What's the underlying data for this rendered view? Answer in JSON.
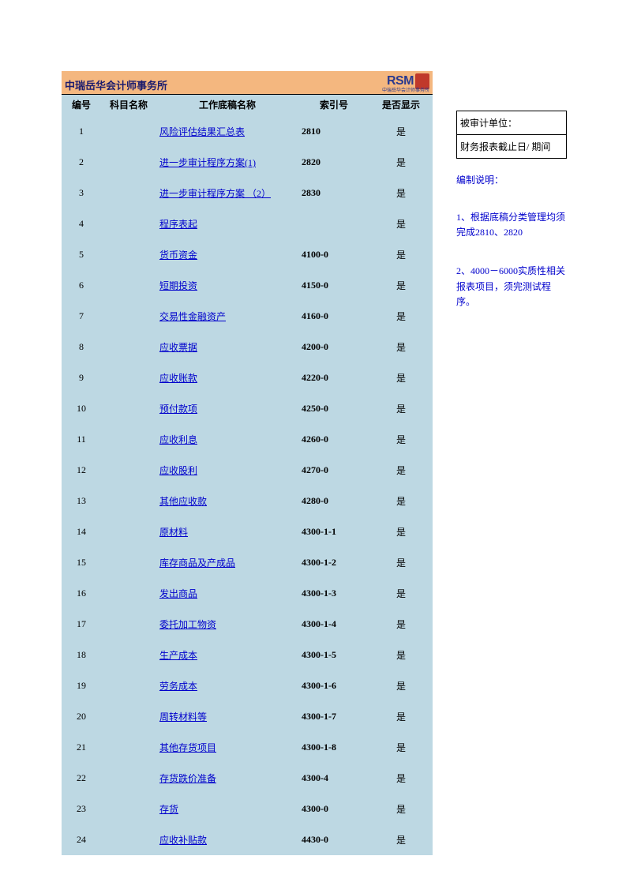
{
  "header": {
    "org_name": "中瑞岳华会计师事务所",
    "logo_text": "RSM",
    "logo_subtext": "中瑞岳华会计师事务所",
    "bar_color": "#f4b77f",
    "title_color": "#1c1c6e",
    "logo_color": "#2a3a8f",
    "seal_color": "#c0392b"
  },
  "table": {
    "background_color": "#bdd8e3",
    "link_color": "#0000cc",
    "columns": {
      "num": "编号",
      "subject": "科目名称",
      "doc_name": "工作底稿名称",
      "index": "索引号",
      "show": "是否显示"
    },
    "rows": [
      {
        "num": "1",
        "subject": "",
        "doc": "风险评估结果汇总表",
        "idx": "2810",
        "show": "是"
      },
      {
        "num": "2",
        "subject": "",
        "doc": "进一步审计程序方案(1)",
        "idx": "2820",
        "show": "是"
      },
      {
        "num": "3",
        "subject": "",
        "doc": "进一步审计程序方案 （2）",
        "idx": "2830",
        "show": "是"
      },
      {
        "num": "4",
        "subject": "",
        "doc": "程序表起",
        "idx": "",
        "show": "是"
      },
      {
        "num": "5",
        "subject": "",
        "doc": "货币资金",
        "idx": "4100-0",
        "show": "是"
      },
      {
        "num": "6",
        "subject": "",
        "doc": "短期投资",
        "idx": "4150-0",
        "show": "是"
      },
      {
        "num": "7",
        "subject": "",
        "doc": "交易性金融资产",
        "idx": "4160-0",
        "show": "是"
      },
      {
        "num": "8",
        "subject": "",
        "doc": "应收票据",
        "idx": "4200-0",
        "show": "是"
      },
      {
        "num": "9",
        "subject": "",
        "doc": "应收账款",
        "idx": "4220-0",
        "show": "是"
      },
      {
        "num": "10",
        "subject": "",
        "doc": "预付款项",
        "idx": "4250-0",
        "show": "是"
      },
      {
        "num": "11",
        "subject": "",
        "doc": "应收利息",
        "idx": "4260-0",
        "show": "是"
      },
      {
        "num": "12",
        "subject": "",
        "doc": "应收股利",
        "idx": "4270-0",
        "show": "是"
      },
      {
        "num": "13",
        "subject": "",
        "doc": "其他应收款",
        "idx": "4280-0",
        "show": "是"
      },
      {
        "num": "14",
        "subject": "",
        "doc": "原材料",
        "idx": "4300-1-1",
        "show": "是"
      },
      {
        "num": "15",
        "subject": "",
        "doc": "库存商品及产成品",
        "idx": "4300-1-2",
        "show": "是"
      },
      {
        "num": "16",
        "subject": "",
        "doc": "发出商品",
        "idx": "4300-1-3",
        "show": "是"
      },
      {
        "num": "17",
        "subject": "",
        "doc": "委托加工物资",
        "idx": "4300-1-4",
        "show": "是"
      },
      {
        "num": "18",
        "subject": "",
        "doc": "生产成本",
        "idx": "4300-1-5",
        "show": "是"
      },
      {
        "num": "19",
        "subject": "",
        "doc": "劳务成本",
        "idx": "4300-1-6",
        "show": "是"
      },
      {
        "num": "20",
        "subject": "",
        "doc": "周转材料等",
        "idx": "4300-1-7",
        "show": "是"
      },
      {
        "num": "21",
        "subject": "",
        "doc": "其他存货项目",
        "idx": "4300-1-8",
        "show": "是"
      },
      {
        "num": "22",
        "subject": "",
        "doc": "存货跌价准备",
        "idx": "4300-4",
        "show": "是"
      },
      {
        "num": "23",
        "subject": "",
        "doc": "存货",
        "idx": "4300-0",
        "show": "是"
      },
      {
        "num": "24",
        "subject": "",
        "doc": "应收补贴款",
        "idx": "4430-0",
        "show": "是"
      }
    ]
  },
  "side": {
    "box1": "被审计单位：",
    "box2": "财务报表截止日/ 期间",
    "heading": "编制说明：",
    "note1": "1、根据底稿分类管理均须完成2810、2820",
    "note2": "2、4000－6000实质性相关报表项目，须完测试程序。",
    "note_color": "#0000cc"
  }
}
